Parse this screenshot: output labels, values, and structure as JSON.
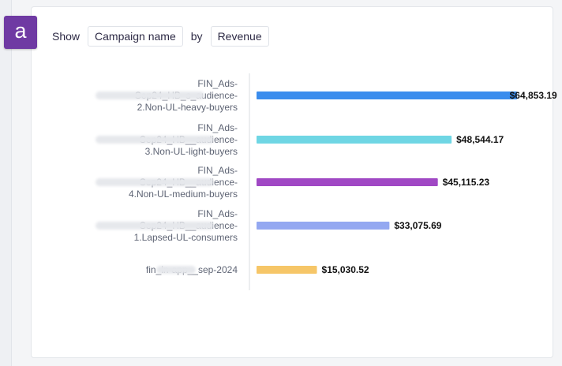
{
  "badge": {
    "letter": "a",
    "color": "#6f3aa3"
  },
  "controls": {
    "show_label": "Show",
    "dimension": "Campaign name",
    "by_label": "by",
    "metric": "Revenue"
  },
  "chart_data": {
    "type": "bar",
    "orientation": "horizontal",
    "categories": [
      [
        "FIN_Ads-",
        "Sep24_HB_s_audience-",
        "2.Non-UL-heavy-buyers"
      ],
      [
        "FIN_Ads-",
        "Sep24_HB__audience-",
        "3.Non-UL-light-buyers"
      ],
      [
        "FIN_Ads-",
        "Sep24_HB__audience-",
        "4.Non-UL-medium-buyers"
      ],
      [
        "FIN_Ads-",
        "Sep24_HB__audience-",
        "1.Lapsed-UL-consumers"
      ],
      [
        "fin_in-app__sep-2024"
      ]
    ],
    "values": [
      64853.19,
      48544.17,
      45115.23,
      33075.69,
      15030.52
    ],
    "value_labels": [
      "$64,853.19",
      "$48,544.17",
      "$45,115.23",
      "$33,075.69",
      "$15,030.52"
    ],
    "colors": [
      "#3b8ded",
      "#6fd6e4",
      "#a048c4",
      "#94a8f1",
      "#f6c668"
    ],
    "xlim": [
      0,
      66000
    ],
    "title": "",
    "xlabel": "",
    "ylabel": ""
  }
}
